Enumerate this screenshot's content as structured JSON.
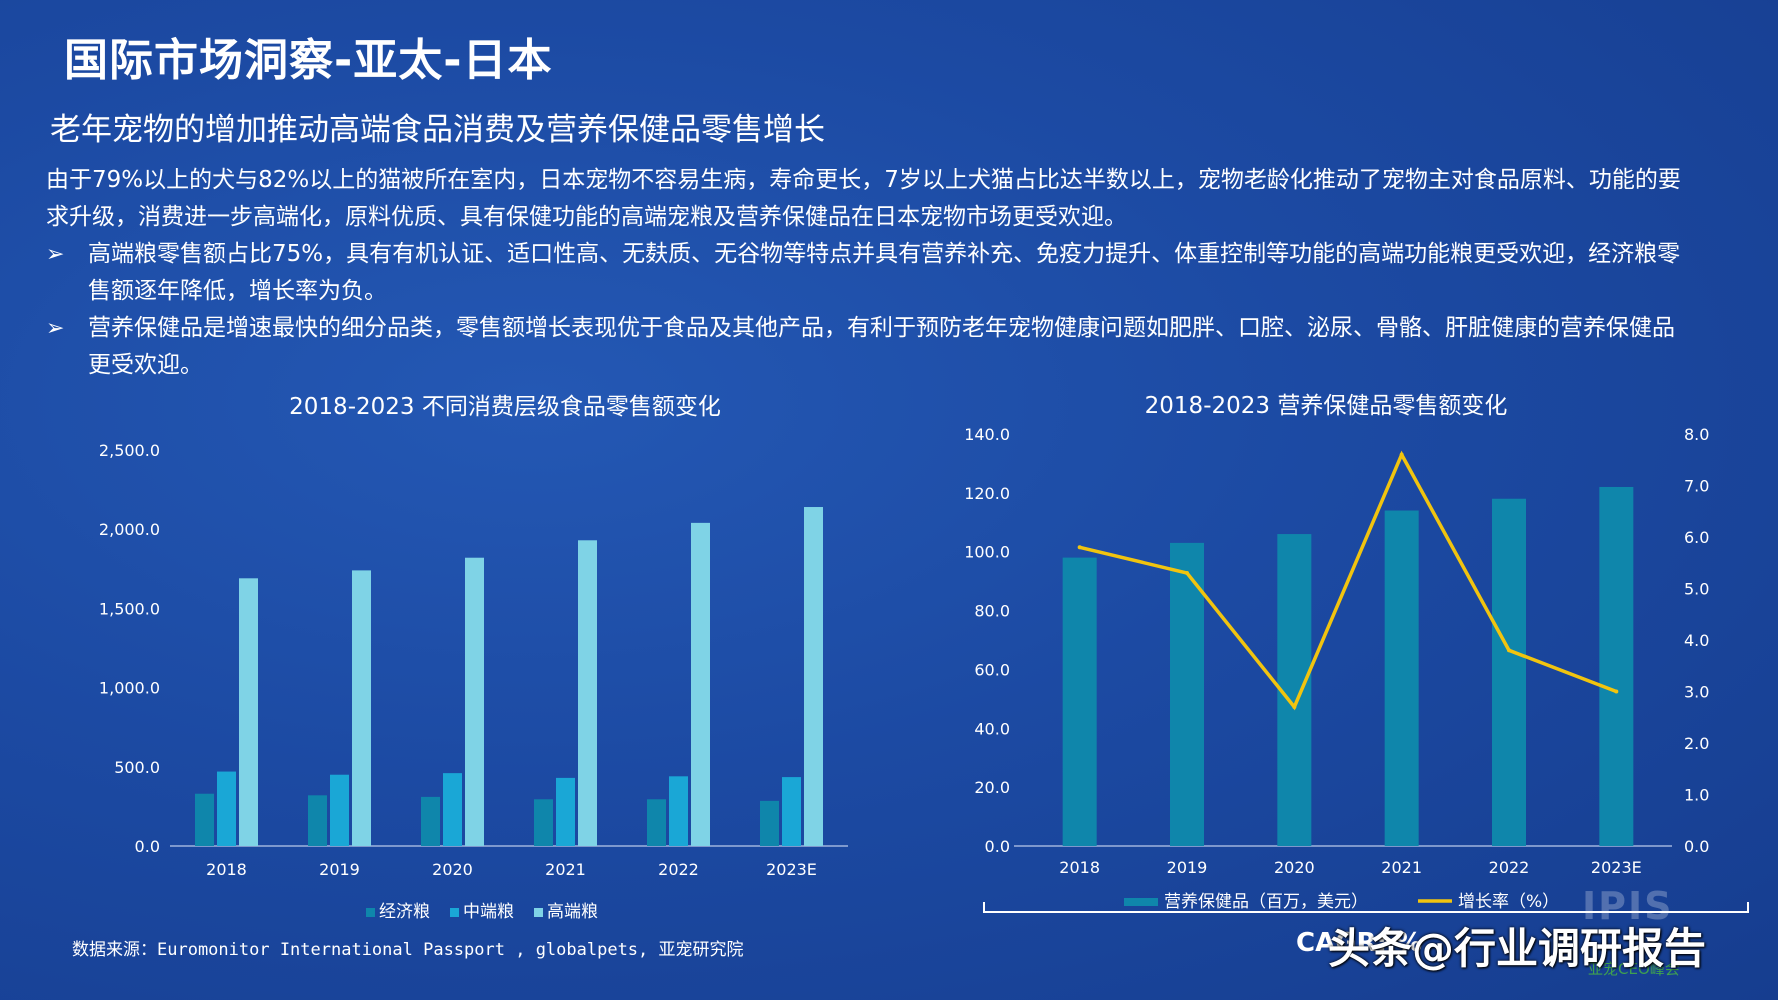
{
  "header": {
    "title": "国际市场洞察-亚太-日本",
    "subtitle": "老年宠物的增加推动高端食品消费及营养保健品零售增长"
  },
  "body": {
    "paragraph": "由于79%以上的犬与82%以上的猫被所在室内，日本宠物不容易生病，寿命更长，7岁以上犬猫占比达半数以上，宠物老龄化推动了宠物主对食品原料、功能的要求升级，消费进一步高端化，原料优质、具有保健功能的高端宠粮及营养保健品在日本宠物市场更受欢迎。",
    "bullet_marker": "➢",
    "bullets": [
      "高端粮零售额占比75%，具有有机认证、适口性高、无麸质、无谷物等特点并具有营养补充、免疫力提升、体重控制等功能的高端功能粮更受欢迎，经济粮零售额逐年降低，增长率为负。",
      "营养保健品是增速最快的细分品类，零售额增长表现优于食品及其他产品，有利于预防老年宠物健康问题如肥胖、口腔、泌尿、骨骼、肝脏健康的营养保健品更受欢迎。"
    ]
  },
  "chart_data": [
    {
      "type": "bar",
      "title": "2018-2023 不同消费层级食品零售额变化",
      "categories": [
        "2018",
        "2019",
        "2020",
        "2021",
        "2022",
        "2023E"
      ],
      "ylim": [
        0,
        2500
      ],
      "yticks": [
        "0.0",
        "500.0",
        "1,000.0",
        "1,500.0",
        "2,000.0",
        "2,500.0"
      ],
      "legend_position": "bottom",
      "series": [
        {
          "name": "经济粮",
          "color": "#0f86ab",
          "values": [
            330,
            320,
            310,
            295,
            295,
            285
          ]
        },
        {
          "name": "中端粮",
          "color": "#1aa7d6",
          "values": [
            470,
            450,
            460,
            430,
            440,
            435
          ]
        },
        {
          "name": "高端粮",
          "color": "#7fd3e6",
          "values": [
            1690,
            1740,
            1820,
            1930,
            2040,
            2140
          ]
        }
      ]
    },
    {
      "type": "bar+line",
      "title": "2018-2023 营养保健品零售额变化",
      "categories": [
        "2018",
        "2019",
        "2020",
        "2021",
        "2022",
        "2023E"
      ],
      "ylim": [
        0,
        140
      ],
      "yticks": [
        "0.0",
        "20.0",
        "40.0",
        "60.0",
        "80.0",
        "100.0",
        "120.0",
        "140.0"
      ],
      "y2lim": [
        0,
        8
      ],
      "y2ticks": [
        "0.0",
        "1.0",
        "2.0",
        "3.0",
        "4.0",
        "5.0",
        "6.0",
        "7.0",
        "8.0"
      ],
      "legend_position": "bottom",
      "series": [
        {
          "name": "营养保健品（百万，美元）",
          "color": "#0f86ab",
          "kind": "bar",
          "values": [
            98,
            103,
            106,
            114,
            118,
            122
          ]
        },
        {
          "name": "增长率（%）",
          "color": "#f1c40f",
          "kind": "line",
          "axis": "right",
          "values": [
            5.8,
            5.3,
            2.7,
            7.6,
            3.8,
            3.0
          ]
        }
      ]
    }
  ],
  "footer": {
    "source": "数据来源：Euromonitor International Passport , globalpets, 亚宠研究院",
    "cagr": "CAGR: %",
    "brand": "IPIS",
    "brand_sub": "亚宠CEO峰会",
    "watermark": "头条@行业调研报告"
  }
}
